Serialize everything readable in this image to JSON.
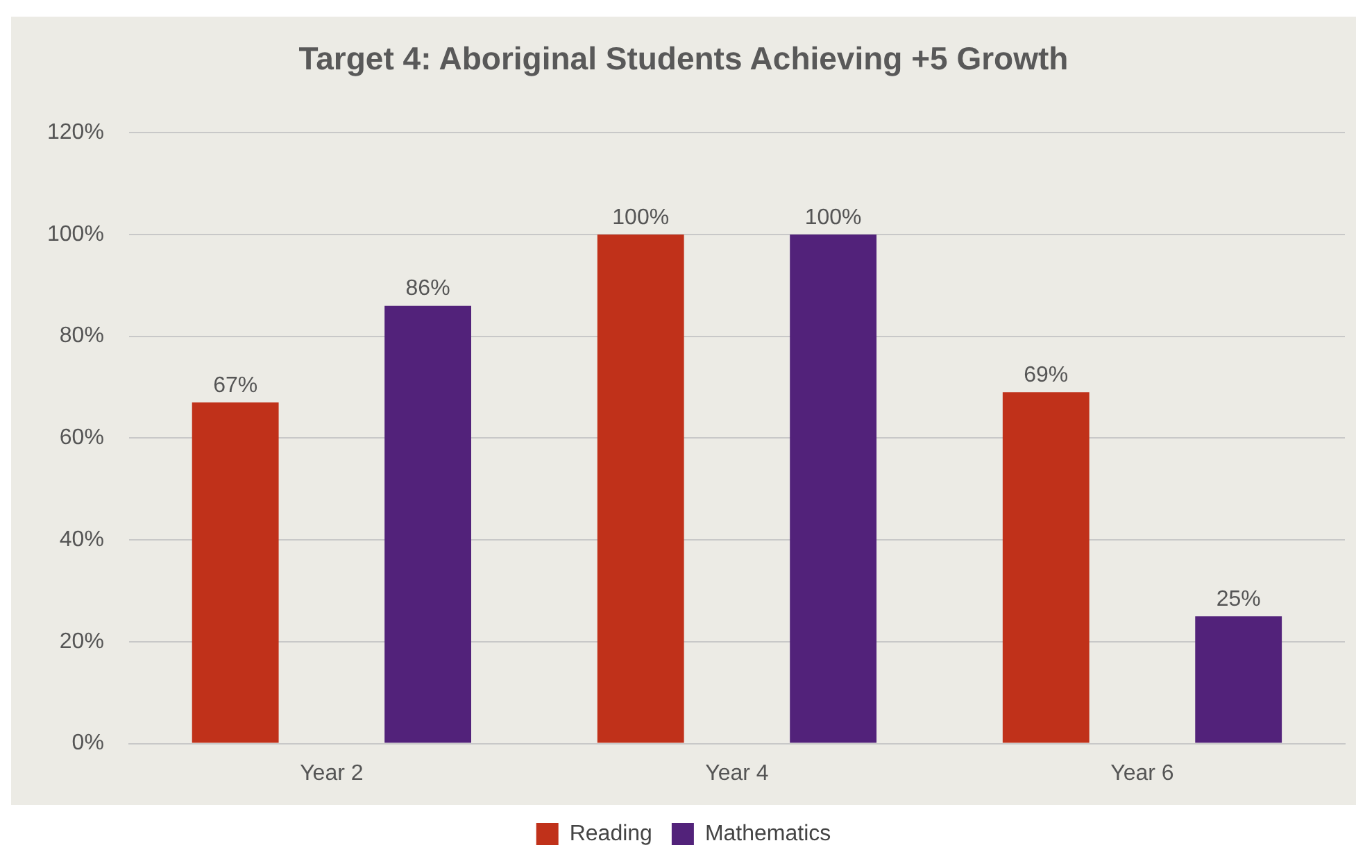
{
  "chart_data": {
    "type": "bar",
    "title": "Target 4: Aboriginal Students Achieving +5 Growth",
    "categories": [
      "Year 2",
      "Year 4",
      "Year 6"
    ],
    "series": [
      {
        "name": "Reading",
        "color": "#c0311a",
        "values": [
          67,
          100,
          69
        ],
        "value_labels": [
          "67%",
          "100%",
          "69%"
        ]
      },
      {
        "name": "Mathematics",
        "color": "#52227a",
        "values": [
          86,
          100,
          25
        ],
        "value_labels": [
          "86%",
          "100%",
          "25%"
        ]
      }
    ],
    "ylim": [
      0,
      120
    ],
    "yticks": [
      {
        "value": 0,
        "label": "0%"
      },
      {
        "value": 20,
        "label": "20%"
      },
      {
        "value": 40,
        "label": "40%"
      },
      {
        "value": 60,
        "label": "60%"
      },
      {
        "value": 80,
        "label": "80%"
      },
      {
        "value": 100,
        "label": "100%"
      },
      {
        "value": 120,
        "label": "120%"
      }
    ],
    "grid": "y",
    "legend": "bottom"
  }
}
